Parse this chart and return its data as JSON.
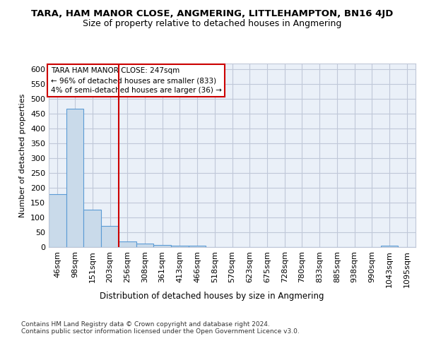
{
  "title": "TARA, HAM MANOR CLOSE, ANGMERING, LITTLEHAMPTON, BN16 4JD",
  "subtitle": "Size of property relative to detached houses in Angmering",
  "xlabel_bottom": "Distribution of detached houses by size in Angmering",
  "ylabel": "Number of detached properties",
  "footer": "Contains HM Land Registry data © Crown copyright and database right 2024.\nContains public sector information licensed under the Open Government Licence v3.0.",
  "bar_color": "#c9daea",
  "bar_edge_color": "#5b9bd5",
  "grid_color": "#c0c8d8",
  "background_color": "#eaf0f8",
  "red_line_color": "#cc0000",
  "annotation_text": "TARA HAM MANOR CLOSE: 247sqm\n← 96% of detached houses are smaller (833)\n4% of semi-detached houses are larger (36) →",
  "categories": [
    "46sqm",
    "98sqm",
    "151sqm",
    "203sqm",
    "256sqm",
    "308sqm",
    "361sqm",
    "413sqm",
    "466sqm",
    "518sqm",
    "570sqm",
    "623sqm",
    "675sqm",
    "728sqm",
    "780sqm",
    "833sqm",
    "885sqm",
    "938sqm",
    "990sqm",
    "1043sqm",
    "1095sqm"
  ],
  "values": [
    180,
    468,
    127,
    71,
    20,
    11,
    7,
    5,
    5,
    0,
    0,
    0,
    0,
    0,
    0,
    0,
    0,
    0,
    0,
    5,
    0
  ],
  "ylim": [
    0,
    620
  ],
  "yticks": [
    0,
    50,
    100,
    150,
    200,
    250,
    300,
    350,
    400,
    450,
    500,
    550,
    600
  ],
  "red_line_x": 3.5
}
